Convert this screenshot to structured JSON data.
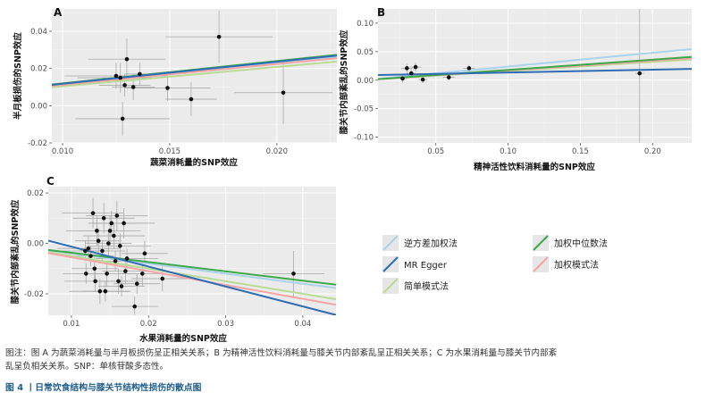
{
  "chart_data": [
    {
      "type": "scatter",
      "panel_label": "A",
      "xlabel": "蔬菜消耗量的SNP效应",
      "ylabel": "半月板损伤的SNP效应",
      "xlim": [
        0.0095,
        0.0228
      ],
      "ylim": [
        -0.02,
        0.052
      ],
      "xticks": [
        0.01,
        0.015,
        0.02
      ],
      "xtick_labels": [
        "0.010",
        "0.015",
        "0.020"
      ],
      "yticks": [
        -0.02,
        0.0,
        0.02,
        0.04
      ],
      "ytick_labels": [
        "-0.02",
        "0.00",
        "0.02",
        "0.04"
      ],
      "grid": true,
      "points": [
        {
          "x": 0.0125,
          "y": 0.016,
          "xerr": 0.0024,
          "yerr": 0.007
        },
        {
          "x": 0.0127,
          "y": 0.015,
          "xerr": 0.002,
          "yerr": 0.008
        },
        {
          "x": 0.013,
          "y": 0.025,
          "xerr": 0.0018,
          "yerr": 0.011
        },
        {
          "x": 0.0129,
          "y": 0.011,
          "xerr": 0.0012,
          "yerr": 0.006
        },
        {
          "x": 0.0133,
          "y": 0.01,
          "xerr": 0.001,
          "yerr": 0.007
        },
        {
          "x": 0.0136,
          "y": 0.017,
          "xerr": 0.0007,
          "yerr": 0.006
        },
        {
          "x": 0.0128,
          "y": -0.007,
          "xerr": 0.0022,
          "yerr": 0.009
        },
        {
          "x": 0.0149,
          "y": 0.0095,
          "xerr": 0.002,
          "yerr": 0.007
        },
        {
          "x": 0.016,
          "y": 0.0035,
          "xerr": 0.0012,
          "yerr": 0.009
        },
        {
          "x": 0.0173,
          "y": 0.037,
          "xerr": 0.0025,
          "yerr": 0.014
        },
        {
          "x": 0.0203,
          "y": 0.007,
          "xerr": 0.0023,
          "yerr": 0.017
        }
      ],
      "lines": [
        {
          "method": "IVW",
          "slope": 1.15,
          "color": "#a9d3ea"
        },
        {
          "method": "MR Egger",
          "slope": 1.18,
          "color": "#2f6db3"
        },
        {
          "method": "Simple mode",
          "slope": 1.04,
          "color": "#b9dc95"
        },
        {
          "method": "Weighted median",
          "slope": 1.2,
          "color": "#3ea84a"
        },
        {
          "method": "Weighted mode",
          "slope": 1.12,
          "color": "#f4a5a5"
        }
      ]
    },
    {
      "type": "scatter",
      "panel_label": "B",
      "xlabel": "精神活性饮料消耗量的SNP效应",
      "ylabel": "膝关节内部紊乱的SNP效应",
      "xlim": [
        0.01,
        0.227
      ],
      "ylim": [
        -0.11,
        0.125
      ],
      "xticks": [
        0.05,
        0.1,
        0.15,
        0.2
      ],
      "xtick_labels": [
        "0.05",
        "0.10",
        "0.15",
        "0.20"
      ],
      "yticks": [
        -0.1,
        -0.05,
        0.0,
        0.05,
        0.1
      ],
      "ytick_labels": [
        "-0.10",
        "-0.05",
        "0.00",
        "0.05",
        "0.10"
      ],
      "grid": true,
      "points": [
        {
          "x": 0.027,
          "y": 0.003,
          "xerr": 0.003,
          "yerr": 0.008
        },
        {
          "x": 0.03,
          "y": 0.021,
          "xerr": 0.004,
          "yerr": 0.008
        },
        {
          "x": 0.033,
          "y": 0.012,
          "xerr": 0.003,
          "yerr": 0.008
        },
        {
          "x": 0.036,
          "y": 0.023,
          "xerr": 0.004,
          "yerr": 0.008
        },
        {
          "x": 0.041,
          "y": 0.001,
          "xerr": 0.003,
          "yerr": 0.006
        },
        {
          "x": 0.059,
          "y": 0.005,
          "xerr": 0.004,
          "yerr": 0.006
        },
        {
          "x": 0.073,
          "y": 0.021,
          "xerr": 0.004,
          "yerr": 0.006
        },
        {
          "x": 0.191,
          "y": 0.012,
          "xerr": 0.003,
          "yerr": 0.125
        }
      ],
      "lines": [
        {
          "method": "IVW",
          "slope": 0.24,
          "intercept": 0.0,
          "color": "#a9d3ea"
        },
        {
          "method": "MR Egger",
          "slope": 0.05,
          "intercept": 0.0085,
          "color": "#2f6db3"
        },
        {
          "method": "Simple mode",
          "slope": 0.16,
          "intercept": 0.0,
          "color": "#b9dc95"
        },
        {
          "method": "Weighted median",
          "slope": 0.18,
          "intercept": 0.0,
          "color": "#3ea84a"
        },
        {
          "method": "Weighted mode",
          "slope": 0.17,
          "intercept": 0.0,
          "color": "#f4a5a5"
        }
      ]
    },
    {
      "type": "scatter",
      "panel_label": "C",
      "xlabel": "水果消耗量的SNP效应",
      "ylabel": "膝关节内部紊乱的SNP效应",
      "xlim": [
        0.007,
        0.0443
      ],
      "ylim": [
        -0.0285,
        0.0225
      ],
      "xticks": [
        0.01,
        0.02,
        0.03,
        0.04
      ],
      "xtick_labels": [
        "0.01",
        "0.02",
        "0.03",
        "0.04"
      ],
      "yticks": [
        -0.02,
        0.0,
        0.02
      ],
      "ytick_labels": [
        "-0.02",
        "0.00",
        "0.02"
      ],
      "grid": true,
      "points": [
        {
          "x": 0.0118,
          "y": -0.003,
          "xerr": 0.003,
          "yerr": 0.004
        },
        {
          "x": 0.0119,
          "y": -0.012,
          "xerr": 0.003,
          "yerr": 0.004
        },
        {
          "x": 0.0122,
          "y": -0.002,
          "xerr": 0.004,
          "yerr": 0.005
        },
        {
          "x": 0.0125,
          "y": -0.005,
          "xerr": 0.003,
          "yerr": 0.004
        },
        {
          "x": 0.0128,
          "y": 0.012,
          "xerr": 0.004,
          "yerr": 0.006
        },
        {
          "x": 0.013,
          "y": -0.01,
          "xerr": 0.003,
          "yerr": 0.005
        },
        {
          "x": 0.0131,
          "y": -0.015,
          "xerr": 0.004,
          "yerr": 0.004
        },
        {
          "x": 0.0133,
          "y": 0.005,
          "xerr": 0.004,
          "yerr": 0.006
        },
        {
          "x": 0.0135,
          "y": 0.001,
          "xerr": 0.003,
          "yerr": 0.005
        },
        {
          "x": 0.0137,
          "y": -0.019,
          "xerr": 0.004,
          "yerr": 0.005
        },
        {
          "x": 0.014,
          "y": -0.003,
          "xerr": 0.003,
          "yerr": 0.004
        },
        {
          "x": 0.0142,
          "y": 0.01,
          "xerr": 0.004,
          "yerr": 0.006
        },
        {
          "x": 0.0144,
          "y": -0.019,
          "xerr": 0.003,
          "yerr": 0.004
        },
        {
          "x": 0.0146,
          "y": -0.012,
          "xerr": 0.004,
          "yerr": 0.005
        },
        {
          "x": 0.0148,
          "y": 0.0,
          "xerr": 0.003,
          "yerr": 0.005
        },
        {
          "x": 0.015,
          "y": 0.005,
          "xerr": 0.004,
          "yerr": 0.006
        },
        {
          "x": 0.0152,
          "y": 0.008,
          "xerr": 0.003,
          "yerr": 0.005
        },
        {
          "x": 0.0155,
          "y": 0.003,
          "xerr": 0.004,
          "yerr": 0.005
        },
        {
          "x": 0.0157,
          "y": -0.007,
          "xerr": 0.003,
          "yerr": 0.004
        },
        {
          "x": 0.0159,
          "y": 0.011,
          "xerr": 0.004,
          "yerr": 0.006
        },
        {
          "x": 0.0161,
          "y": -0.015,
          "xerr": 0.003,
          "yerr": 0.005
        },
        {
          "x": 0.0163,
          "y": -0.001,
          "xerr": 0.004,
          "yerr": 0.005
        },
        {
          "x": 0.0165,
          "y": -0.017,
          "xerr": 0.003,
          "yerr": 0.004
        },
        {
          "x": 0.0168,
          "y": 0.008,
          "xerr": 0.004,
          "yerr": 0.006
        },
        {
          "x": 0.017,
          "y": -0.011,
          "xerr": 0.003,
          "yerr": 0.005
        },
        {
          "x": 0.0172,
          "y": -0.006,
          "xerr": 0.004,
          "yerr": 0.004
        },
        {
          "x": 0.0182,
          "y": -0.025,
          "xerr": 0.003,
          "yerr": 0.004
        },
        {
          "x": 0.0185,
          "y": -0.016,
          "xerr": 0.003,
          "yerr": 0.004
        },
        {
          "x": 0.0192,
          "y": -0.012,
          "xerr": 0.003,
          "yerr": 0.005
        },
        {
          "x": 0.0195,
          "y": -0.004,
          "xerr": 0.003,
          "yerr": 0.005
        },
        {
          "x": 0.0218,
          "y": -0.014,
          "xerr": 0.004,
          "yerr": 0.005
        },
        {
          "x": 0.0388,
          "y": -0.012,
          "xerr": 0.004,
          "yerr": 0.009
        }
      ],
      "lines": [
        {
          "method": "IVW",
          "slope": -0.4,
          "intercept": 0.0,
          "color": "#a9d3ea"
        },
        {
          "method": "MR Egger",
          "slope": -0.79,
          "intercept": 0.0066,
          "color": "#2f6db3"
        },
        {
          "method": "Simple mode",
          "slope": -0.5,
          "intercept": 0.0,
          "color": "#b9dc95"
        },
        {
          "method": "Weighted median",
          "slope": -0.37,
          "intercept": 0.0,
          "color": "#3ea84a"
        },
        {
          "method": "Weighted mode",
          "slope": -0.55,
          "intercept": 0.0,
          "color": "#f4a5a5"
        }
      ]
    }
  ],
  "legend": {
    "items": [
      {
        "label": "逆方差加权法",
        "color": "#a9d3ea"
      },
      {
        "label": "加权中位数法",
        "color": "#3ea84a"
      },
      {
        "label": "MR Egger",
        "color": "#2f6db3"
      },
      {
        "label": "加权模式法",
        "color": "#f4a5a5"
      },
      {
        "label": "简单模式法",
        "color": "#b9dc95"
      }
    ]
  },
  "caption": {
    "line1": "图注：图 A 为蔬菜消耗量与半月板损伤呈正相关关系；B 为精神活性饮料消耗量与膝关节内部紊乱呈正相关关系；C 为水果消耗量与膝关节内部紊",
    "line2": "乱呈负相关关系。SNP：单核苷酸多态性。",
    "title": "图 4 丨日常饮食结构与膝关节结构性损伤的散点图"
  }
}
